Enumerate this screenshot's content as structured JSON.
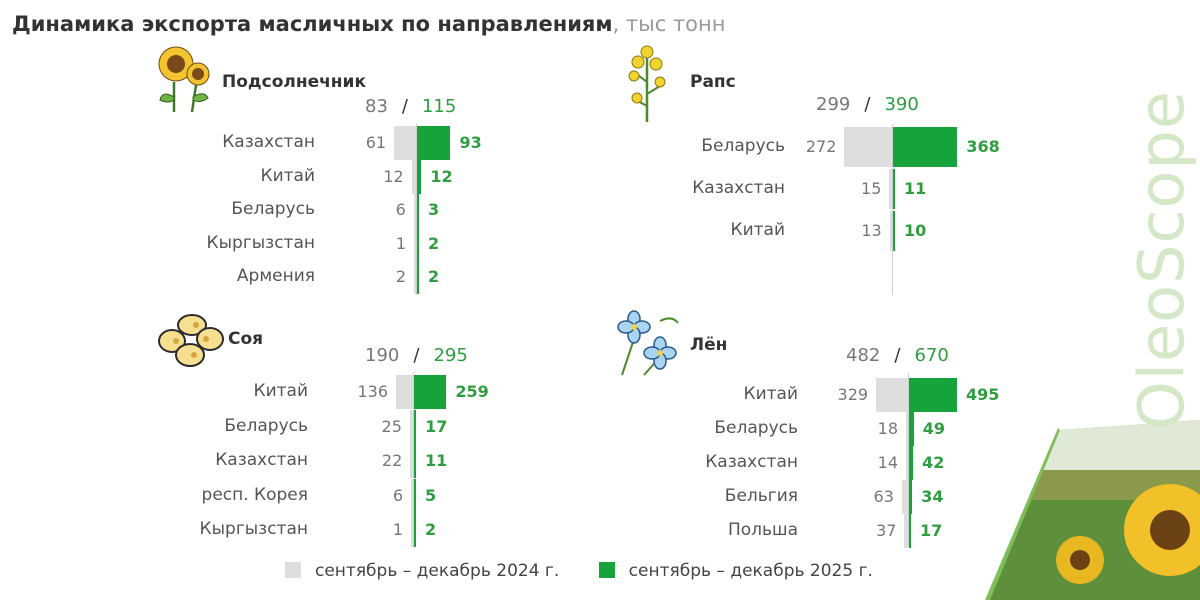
{
  "title": "Динамика экспорта масличных по направлениям",
  "unit": ", тыс тонн",
  "brand": "OleoScope",
  "colors": {
    "prev": "#dedede",
    "curr": "#17a33b",
    "curr_text": "#2f9e41"
  },
  "legend": {
    "prev_label": "сентябрь – декабрь 2024 г.",
    "curr_label": "сентябрь – декабрь 2025 г."
  },
  "chart_data": [
    {
      "type": "bar",
      "name": "Подсолнечник",
      "total_prev": "83",
      "total_curr": "115",
      "categories": [
        "Казахстан",
        "Китай",
        "Беларусь",
        "Кыргызстан",
        "Армения"
      ],
      "series": [
        {
          "name": "сентябрь – декабрь 2024 г.",
          "values": [
            61,
            12,
            6,
            1,
            2
          ]
        },
        {
          "name": "сентябрь – декабрь 2025 г.",
          "values": [
            93,
            12,
            3,
            2,
            2
          ]
        }
      ]
    },
    {
      "type": "bar",
      "name": "Рапс",
      "total_prev": "299",
      "total_curr": "390",
      "categories": [
        "Беларусь",
        "Казахстан",
        "Китай"
      ],
      "series": [
        {
          "name": "сентябрь – декабрь 2024 г.",
          "values": [
            272,
            15,
            13
          ]
        },
        {
          "name": "сентябрь – декабрь 2025 г.",
          "values": [
            368,
            11,
            10
          ]
        }
      ]
    },
    {
      "type": "bar",
      "name": "Соя",
      "total_prev": "190",
      "total_curr": "295",
      "categories": [
        "Китай",
        "Беларусь",
        "Казахстан",
        "респ. Корея",
        "Кыргызстан"
      ],
      "series": [
        {
          "name": "сентябрь – декабрь 2024 г.",
          "values": [
            136,
            25,
            22,
            6,
            1
          ]
        },
        {
          "name": "сентябрь – декабрь 2025 г.",
          "values": [
            259,
            17,
            11,
            5,
            2
          ]
        }
      ]
    },
    {
      "type": "bar",
      "name": "Лён",
      "total_prev": "482",
      "total_curr": "670",
      "categories": [
        "Китай",
        "Беларусь",
        "Казахстан",
        "Бельгия",
        "Польша"
      ],
      "series": [
        {
          "name": "сентябрь – декабрь 2024 г.",
          "values": [
            329,
            18,
            14,
            63,
            37
          ]
        },
        {
          "name": "сентябрь – декабрь 2025 г.",
          "values": [
            495,
            49,
            42,
            34,
            17
          ]
        }
      ]
    }
  ]
}
